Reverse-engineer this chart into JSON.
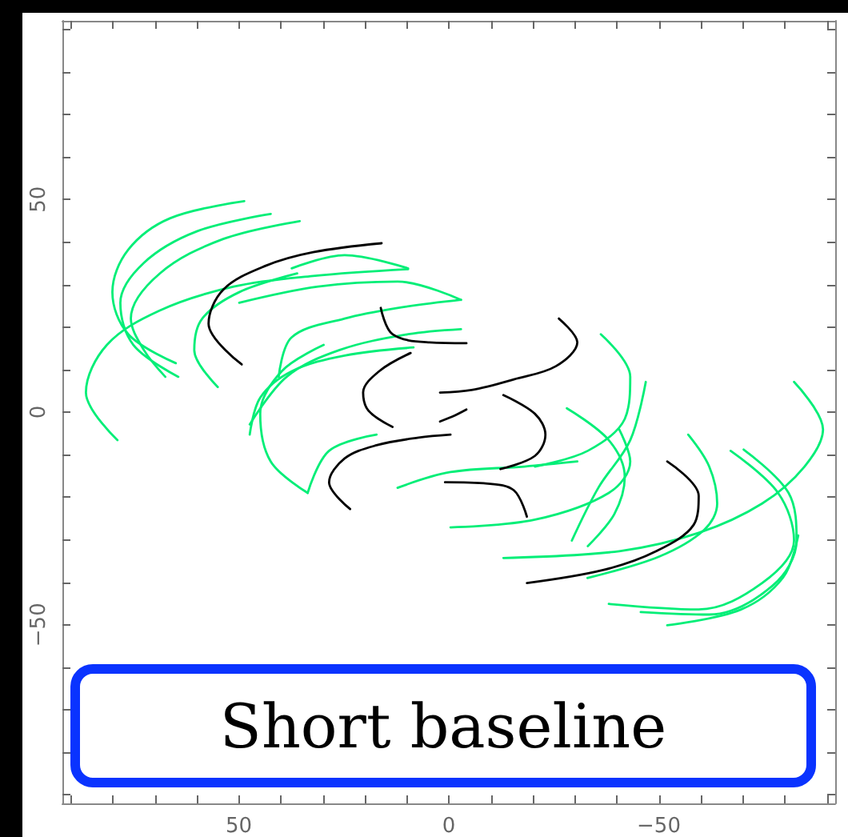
{
  "chart_data": {
    "type": "line",
    "marker": "none",
    "line_style": "solid",
    "grid": false,
    "xlim": [
      92,
      -92
    ],
    "ylim": [
      -92,
      92
    ],
    "xticks": [
      {
        "value": 90,
        "label": null
      },
      {
        "value": 80,
        "label": null
      },
      {
        "value": 70,
        "label": null
      },
      {
        "value": 60,
        "label": null
      },
      50,
      {
        "value": 40,
        "label": null
      },
      {
        "value": 30,
        "label": null
      },
      {
        "value": 20,
        "label": null
      },
      {
        "value": 10,
        "label": null
      },
      0,
      {
        "value": -10,
        "label": null
      },
      {
        "value": -20,
        "label": null
      },
      {
        "value": -30,
        "label": null
      },
      {
        "value": -40,
        "label": null
      },
      {
        "value": -50,
        "label": "−50"
      },
      {
        "value": -60,
        "label": null
      },
      {
        "value": -70,
        "label": null
      },
      {
        "value": -80,
        "label": null
      },
      {
        "value": -90,
        "label": null
      }
    ],
    "yticks": [
      {
        "value": -90,
        "label": null
      },
      {
        "value": -80,
        "label": null
      },
      {
        "value": -70,
        "label": null
      },
      {
        "value": -60,
        "label": null
      },
      {
        "value": -50,
        "label": "−50"
      },
      {
        "value": -40,
        "label": null
      },
      {
        "value": -30,
        "label": null
      },
      {
        "value": -20,
        "label": null
      },
      {
        "value": -10,
        "label": null
      },
      0,
      {
        "value": 10,
        "label": null
      },
      {
        "value": 20,
        "label": null
      },
      {
        "value": 30,
        "label": null
      },
      {
        "value": 40,
        "label": null
      },
      50,
      {
        "value": 60,
        "label": null
      },
      {
        "value": 70,
        "label": null
      },
      {
        "value": 80,
        "label": null
      },
      {
        "value": 90,
        "label": null
      }
    ],
    "annotations": [
      "Short baseline"
    ],
    "series": [
      {
        "color": "#00ee77",
        "x": [
          48.7,
          66.3,
          76.3,
          80.1,
          76.3,
          65.0
        ],
        "values": [
          49.6,
          45.6,
          38.2,
          28.2,
          18.3,
          11.5
        ]
      },
      {
        "color": "#00ee77",
        "x": [
          42.4,
          60.0,
          72.6,
          78.2,
          75.1,
          64.4
        ],
        "values": [
          46.6,
          42.5,
          35.1,
          25.7,
          15.8,
          8.3
        ]
      },
      {
        "color": "#00ee77",
        "x": [
          35.5,
          53.7,
          68.8,
          75.7,
          72.6,
          67.5
        ],
        "values": [
          44.9,
          40.7,
          32.6,
          22.0,
          14.6,
          8.3
        ]
      },
      {
        "color": "#00ee77",
        "x": [
          78.9,
          86.4,
          81.4,
          68.8,
          51.2,
          32.3,
          9.7
        ],
        "values": [
          -6.6,
          4.6,
          15.8,
          23.9,
          29.5,
          32.0,
          33.6
        ]
      },
      {
        "color": "#00ee77",
        "x": [
          -82.2,
          -89.1,
          -84.7,
          -74.6,
          -59.5,
          -40.6,
          -13.0
        ],
        "values": [
          7.1,
          -4.1,
          -12.8,
          -21.5,
          -28.4,
          -32.7,
          -34.3
        ]
      },
      {
        "color": "#00ee77",
        "x": [
          -67.1,
          -78.4,
          -82.2,
          -74.6,
          -59.5,
          -38.1
        ],
        "values": [
          -9.1,
          -19.0,
          -30.2,
          -40.2,
          -46.4,
          -45.1
        ]
      },
      {
        "color": "#00ee77",
        "x": [
          -70.2,
          -80.9,
          -82.8,
          -77.1,
          -62.0,
          -45.7
        ],
        "values": [
          -8.8,
          -19.0,
          -30.2,
          -40.8,
          -47.6,
          -47.0
        ]
      },
      {
        "color": "#00ee77",
        "x": [
          -52.0,
          -69.6,
          -79.6,
          -83.2
        ],
        "values": [
          -50.1,
          -46.4,
          -38.9,
          -29.0
        ]
      },
      {
        "color": "#00ee77",
        "x": [
          -57.0,
          -62.0,
          -63.9,
          -60.8,
          -50.0,
          -33.0
        ],
        "values": [
          -5.3,
          -12.8,
          -21.5,
          -27.7,
          -34.0,
          -39.0
        ]
      },
      {
        "color": "#00ee77",
        "x": [
          55.0,
          60.6,
          58.7,
          49.9,
          36.1
        ],
        "values": [
          5.9,
          14.6,
          22.0,
          28.2,
          32.6
        ]
      },
      {
        "color": "#00ee77",
        "x": [
          40.5,
          37.4,
          24.8,
          12.2,
          -2.9
        ],
        "values": [
          8.3,
          17.6,
          22.0,
          24.5,
          26.4
        ]
      },
      {
        "color": "#00ee77",
        "x": [
          47.4,
          44.9,
          37.4,
          24.8,
          8.4
        ],
        "values": [
          -5.3,
          3.4,
          9.6,
          13.3,
          15.2
        ]
      },
      {
        "color": "#00ee77",
        "x": [
          -36.2,
          -43.2,
          -41.9,
          -33.1,
          -20.5
        ],
        "values": [
          18.3,
          8.3,
          -1.6,
          -9.1,
          -12.8
        ]
      },
      {
        "color": "#00ee77",
        "x": [
          33.6,
          28.5,
          17.2
        ],
        "values": [
          -19.0,
          -9.1,
          -5.3
        ]
      },
      {
        "color": "#00ee77",
        "x": [
          -0.4,
          -20.5,
          -38.1,
          -43.2,
          -40.6
        ],
        "values": [
          -27.1,
          -25.3,
          -19.0,
          -11.6,
          -4.1
        ]
      },
      {
        "color": "#00ee77",
        "x": [
          -46.9,
          -43.2,
          -35.6,
          -29.3
        ],
        "values": [
          7.1,
          -6.6,
          -17.8,
          -30.2
        ]
      },
      {
        "color": "#00ee77",
        "x": [
          47.4,
          38.6,
          26.0,
          9.7,
          -2.9
        ],
        "values": [
          -2.9,
          8.3,
          14.6,
          18.3,
          19.5
        ]
      },
      {
        "color": "#00ee77",
        "x": [
          37.4,
          24.8,
          9.7
        ],
        "values": [
          33.8,
          36.9,
          33.8
        ]
      },
      {
        "color": "#00ee77",
        "x": [
          49.9,
          31.1,
          12.2,
          -2.9
        ],
        "values": [
          25.7,
          29.5,
          30.7,
          26.4
        ]
      },
      {
        "color": "#00ee77",
        "x": [
          12.2,
          -0.4,
          -18.0,
          -30.6
        ],
        "values": [
          -17.8,
          -14.1,
          -12.8,
          -11.6
        ]
      },
      {
        "color": "#00ee77",
        "x": [
          -28.1,
          -38.1,
          -41.9,
          -39.4,
          -33.1
        ],
        "values": [
          0.9,
          -6.6,
          -15.3,
          -24.0,
          -31.5
        ]
      },
      {
        "color": "#00ee77",
        "x": [
          33.6,
          42.4,
          44.9,
          39.8,
          29.8
        ],
        "values": [
          -19.0,
          -11.6,
          -0.4,
          9.6,
          15.8
        ]
      },
      {
        "color": "#000000",
        "x": [
          49.3,
          57.2,
          53.7,
          43.6,
          32.3,
          16.0
        ],
        "values": [
          11.2,
          20.8,
          28.8,
          34.4,
          37.6,
          39.7
        ]
      },
      {
        "color": "#000000",
        "x": [
          -52.0,
          -59.5,
          -58.3,
          -49.4,
          -36.9,
          -18.6
        ],
        "values": [
          -11.6,
          -19.7,
          -26.5,
          -32.7,
          -37.1,
          -40.2
        ]
      },
      {
        "color": "#000000",
        "x": [
          16.2,
          13.4,
          4.6,
          -4.2
        ],
        "values": [
          24.5,
          18.3,
          16.4,
          16.2
        ]
      },
      {
        "color": "#000000",
        "x": [
          -18.6,
          -15.5,
          -9.2,
          0.9
        ],
        "values": [
          -24.6,
          -18.4,
          -16.8,
          -16.5
        ]
      },
      {
        "color": "#000000",
        "x": [
          -26.2,
          -30.6,
          -25.5,
          -15.5,
          -5.4,
          2.1
        ],
        "values": [
          22.0,
          16.4,
          10.8,
          7.7,
          5.2,
          4.6
        ]
      },
      {
        "color": "#000000",
        "x": [
          23.5,
          28.5,
          24.8,
          17.2,
          7.2,
          -0.4
        ],
        "values": [
          -22.8,
          -16.5,
          -10.9,
          -7.8,
          -6.0,
          -5.3
        ]
      },
      {
        "color": "#000000",
        "x": [
          9.1,
          16.6,
          20.4,
          19.1,
          13.4
        ],
        "values": [
          13.9,
          9.6,
          4.6,
          0.3,
          -3.5
        ]
      },
      {
        "color": "#000000",
        "x": [
          -13.0,
          -20.5,
          -23.0,
          -20.5,
          -12.3
        ],
        "values": [
          4.0,
          -0.4,
          -5.3,
          -10.3,
          -13.4
        ]
      },
      {
        "color": "#000000",
        "x": [
          2.1,
          -1.0,
          -4.2
        ],
        "values": [
          -2.2,
          -1.0,
          0.6
        ]
      }
    ]
  }
}
